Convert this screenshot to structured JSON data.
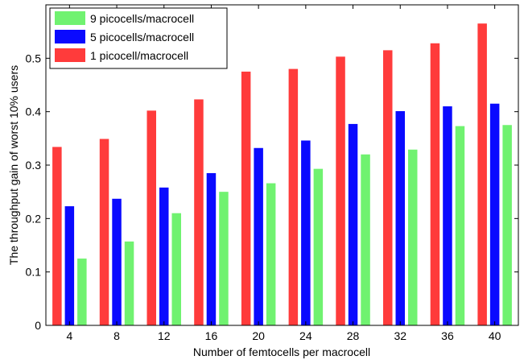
{
  "chart_data": {
    "type": "bar",
    "title": "",
    "xlabel": "Number of femtocells per macrocell",
    "ylabel": "The throughput gain of worst 10% users",
    "categories": [
      "4",
      "8",
      "12",
      "16",
      "20",
      "24",
      "28",
      "32",
      "36",
      "40"
    ],
    "ylim": [
      0,
      0.6
    ],
    "yticks": [
      "0",
      "0.1",
      "0.2",
      "0.3",
      "0.4",
      "0.5"
    ],
    "ytick_values": [
      0,
      0.1,
      0.2,
      0.3,
      0.4,
      0.5
    ],
    "grid": false,
    "legend_position": "top-left",
    "legend_order": [
      "9 picocells/macrocell",
      "5 picocells/macrocell",
      "1 picocell/macrocell"
    ],
    "series": [
      {
        "name": "1 picocell/macrocell",
        "color": "#ff3b3b",
        "values": [
          0.334,
          0.349,
          0.402,
          0.423,
          0.475,
          0.48,
          0.503,
          0.515,
          0.528,
          0.565
        ]
      },
      {
        "name": "5 picocells/macrocell",
        "color": "#0a0aff",
        "values": [
          0.223,
          0.237,
          0.258,
          0.285,
          0.332,
          0.346,
          0.377,
          0.401,
          0.41,
          0.415
        ]
      },
      {
        "name": "9 picocells/macrocell",
        "color": "#70f270",
        "values": [
          0.125,
          0.157,
          0.21,
          0.25,
          0.266,
          0.293,
          0.32,
          0.329,
          0.373,
          0.375
        ]
      }
    ]
  }
}
